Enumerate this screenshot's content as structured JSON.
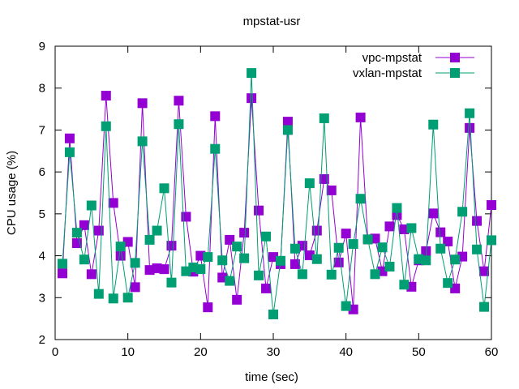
{
  "chart_data": {
    "type": "line",
    "title": "mpstat-usr",
    "xlabel": "time (sec)",
    "ylabel": "CPU usage (%)",
    "xlim": [
      0,
      60
    ],
    "ylim": [
      2,
      9
    ],
    "x_ticks": [
      "0",
      "10",
      "20",
      "30",
      "40",
      "50",
      "60"
    ],
    "y_ticks": [
      "2",
      "3",
      "4",
      "5",
      "6",
      "7",
      "8",
      "9"
    ],
    "grid": false,
    "legend_position": "top-right",
    "x": [
      1,
      2,
      3,
      4,
      5,
      6,
      7,
      8,
      9,
      10,
      11,
      12,
      13,
      14,
      15,
      16,
      17,
      18,
      19,
      20,
      21,
      22,
      23,
      24,
      25,
      26,
      27,
      28,
      29,
      30,
      31,
      32,
      33,
      34,
      35,
      36,
      37,
      38,
      39,
      40,
      41,
      42,
      43,
      44,
      45,
      46,
      47,
      48,
      49,
      50,
      51,
      52,
      53,
      54,
      55,
      56,
      57,
      58,
      59,
      60
    ],
    "series": [
      {
        "name": "vpc-mpstat",
        "color": "#9400d3",
        "marker": "filled-square",
        "values": [
          3.58,
          6.8,
          4.3,
          4.73,
          3.56,
          4.6,
          7.82,
          5.26,
          4.0,
          4.33,
          3.25,
          7.64,
          3.66,
          3.7,
          3.68,
          4.24,
          7.7,
          4.93,
          3.62,
          4.0,
          2.77,
          7.33,
          3.48,
          4.38,
          2.95,
          4.55,
          7.76,
          5.08,
          3.22,
          3.97,
          3.8,
          7.2,
          3.8,
          4.24,
          4.01,
          4.6,
          5.83,
          5.56,
          3.84,
          4.53,
          2.72,
          7.3,
          4.39,
          4.41,
          3.63,
          4.7,
          4.97,
          4.63,
          3.26,
          3.89,
          4.11,
          5.01,
          4.56,
          4.34,
          3.22,
          3.98,
          7.05,
          4.83,
          3.63,
          5.21
        ]
      },
      {
        "name": "vxlan-mpstat",
        "color": "#009e73",
        "marker": "filled-square",
        "values": [
          3.81,
          6.47,
          4.55,
          3.91,
          5.2,
          3.09,
          7.09,
          2.98,
          4.22,
          3.0,
          3.83,
          6.73,
          4.38,
          4.6,
          5.61,
          3.36,
          7.14,
          3.63,
          3.72,
          3.68,
          3.97,
          6.55,
          3.89,
          3.4,
          4.22,
          3.94,
          8.36,
          3.53,
          4.46,
          2.6,
          3.88,
          7.0,
          4.17,
          3.56,
          5.73,
          3.92,
          7.28,
          3.55,
          4.19,
          2.8,
          4.28,
          5.36,
          4.39,
          3.56,
          4.2,
          3.74,
          5.14,
          3.31,
          4.66,
          3.92,
          3.89,
          7.13,
          4.17,
          3.35,
          3.91,
          5.05,
          7.4,
          4.15,
          2.78,
          4.37
        ]
      }
    ]
  }
}
